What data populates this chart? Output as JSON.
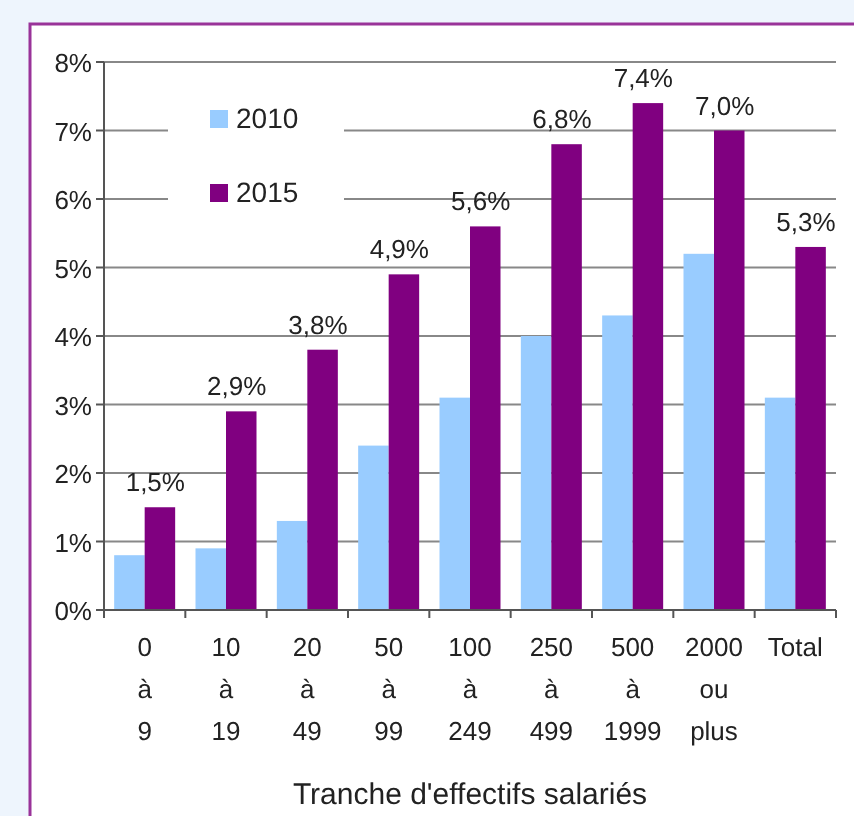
{
  "chart_data": {
    "type": "bar",
    "xlabel": "Tranche d'effectifs salariés",
    "categories": [
      "0 à 9",
      "10 à 19",
      "20 à 49",
      "50 à 99",
      "100 à 249",
      "250 à 499",
      "500 à 1999",
      "2000 ou plus",
      "Total"
    ],
    "series": [
      {
        "name": "2010",
        "color": "#99ccff",
        "values": [
          0.8,
          0.9,
          1.3,
          2.4,
          3.1,
          4.0,
          4.3,
          5.2,
          3.1
        ]
      },
      {
        "name": "2015",
        "color": "#800080",
        "values": [
          1.5,
          2.9,
          3.8,
          4.9,
          5.6,
          6.8,
          7.4,
          7.0,
          5.3
        ],
        "value_labels": [
          "1,5%",
          "2,9%",
          "3,8%",
          "4,9%",
          "5,6%",
          "6,8%",
          "7,4%",
          "7,0%",
          "5,3%"
        ]
      }
    ],
    "ylim": [
      0,
      8
    ],
    "yticks": [
      {
        "value": 0,
        "label": "0%"
      },
      {
        "value": 1,
        "label": "1%"
      },
      {
        "value": 2,
        "label": "2%"
      },
      {
        "value": 3,
        "label": "3%"
      },
      {
        "value": 4,
        "label": "4%"
      },
      {
        "value": 5,
        "label": "5%"
      },
      {
        "value": 6,
        "label": "6%"
      },
      {
        "value": 7,
        "label": "7%"
      },
      {
        "value": 8,
        "label": "8%"
      }
    ],
    "grid": "y",
    "legend": "top left"
  }
}
